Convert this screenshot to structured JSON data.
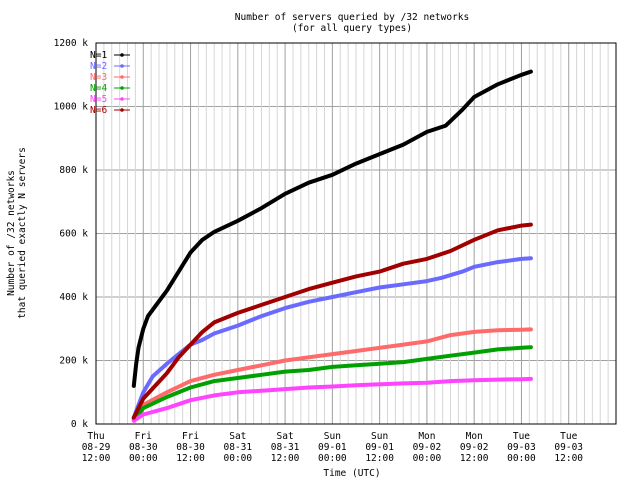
{
  "chart_data": {
    "type": "line",
    "title": "Number of servers queried by /32 networks",
    "subtitle": "(for all query types)",
    "xlabel": "Time (UTC)",
    "ylabel_line1": "Number of /32 networks",
    "ylabel_line2": "that queried exactly N servers",
    "ylim": [
      0,
      1200000
    ],
    "xlim": [
      0,
      11
    ],
    "x_unit": "half-days since Thu 08-29 12:00",
    "grid": true,
    "legend_position": "top-left",
    "x_ticks": [
      {
        "day": "Thu",
        "date": "08-29",
        "time": "12:00"
      },
      {
        "day": "Fri",
        "date": "08-30",
        "time": "00:00"
      },
      {
        "day": "Fri",
        "date": "08-30",
        "time": "12:00"
      },
      {
        "day": "Sat",
        "date": "08-31",
        "time": "00:00"
      },
      {
        "day": "Sat",
        "date": "08-31",
        "time": "12:00"
      },
      {
        "day": "Sun",
        "date": "09-01",
        "time": "00:00"
      },
      {
        "day": "Sun",
        "date": "09-01",
        "time": "12:00"
      },
      {
        "day": "Mon",
        "date": "09-02",
        "time": "00:00"
      },
      {
        "day": "Mon",
        "date": "09-02",
        "time": "12:00"
      },
      {
        "day": "Tue",
        "date": "09-03",
        "time": "00:00"
      },
      {
        "day": "Tue",
        "date": "09-03",
        "time": "12:00"
      }
    ],
    "y_ticks": [
      {
        "value": 0,
        "label": "0 k"
      },
      {
        "value": 200000,
        "label": "200 k"
      },
      {
        "value": 400000,
        "label": "400 k"
      },
      {
        "value": 600000,
        "label": "600 k"
      },
      {
        "value": 800000,
        "label": "800 k"
      },
      {
        "value": 1000000,
        "label": "1000 k"
      },
      {
        "value": 1200000,
        "label": "1200 k"
      }
    ],
    "series": [
      {
        "name": "N=1",
        "color": "#000000",
        "points": [
          [
            0.8,
            120000
          ],
          [
            0.85,
            190000
          ],
          [
            0.9,
            240000
          ],
          [
            1.0,
            300000
          ],
          [
            1.1,
            340000
          ],
          [
            1.25,
            370000
          ],
          [
            1.5,
            420000
          ],
          [
            1.75,
            480000
          ],
          [
            2.0,
            540000
          ],
          [
            2.25,
            580000
          ],
          [
            2.5,
            605000
          ],
          [
            3.0,
            640000
          ],
          [
            3.5,
            680000
          ],
          [
            4.0,
            725000
          ],
          [
            4.5,
            760000
          ],
          [
            5.0,
            785000
          ],
          [
            5.5,
            820000
          ],
          [
            6.0,
            850000
          ],
          [
            6.5,
            880000
          ],
          [
            7.0,
            920000
          ],
          [
            7.4,
            940000
          ],
          [
            7.75,
            990000
          ],
          [
            8.0,
            1030000
          ],
          [
            8.5,
            1070000
          ],
          [
            9.0,
            1100000
          ],
          [
            9.2,
            1110000
          ]
        ]
      },
      {
        "name": "N=2",
        "color": "#6a6aff",
        "points": [
          [
            0.8,
            20000
          ],
          [
            0.9,
            60000
          ],
          [
            1.0,
            100000
          ],
          [
            1.2,
            150000
          ],
          [
            1.5,
            190000
          ],
          [
            1.75,
            220000
          ],
          [
            2.0,
            250000
          ],
          [
            2.25,
            265000
          ],
          [
            2.5,
            285000
          ],
          [
            3.0,
            310000
          ],
          [
            3.5,
            340000
          ],
          [
            4.0,
            365000
          ],
          [
            4.5,
            385000
          ],
          [
            5.0,
            400000
          ],
          [
            5.5,
            415000
          ],
          [
            6.0,
            430000
          ],
          [
            6.5,
            440000
          ],
          [
            7.0,
            450000
          ],
          [
            7.3,
            460000
          ],
          [
            7.75,
            480000
          ],
          [
            8.0,
            495000
          ],
          [
            8.5,
            510000
          ],
          [
            9.0,
            520000
          ],
          [
            9.2,
            522000
          ]
        ]
      },
      {
        "name": "N=3",
        "color": "#ff6a6a",
        "points": [
          [
            0.8,
            20000
          ],
          [
            0.9,
            40000
          ],
          [
            1.0,
            60000
          ],
          [
            1.5,
            100000
          ],
          [
            2.0,
            135000
          ],
          [
            2.5,
            155000
          ],
          [
            3.0,
            170000
          ],
          [
            3.5,
            185000
          ],
          [
            4.0,
            200000
          ],
          [
            4.5,
            210000
          ],
          [
            5.0,
            220000
          ],
          [
            5.5,
            230000
          ],
          [
            6.0,
            240000
          ],
          [
            6.5,
            250000
          ],
          [
            7.0,
            260000
          ],
          [
            7.5,
            280000
          ],
          [
            8.0,
            290000
          ],
          [
            8.5,
            295000
          ],
          [
            9.0,
            297000
          ],
          [
            9.2,
            298000
          ]
        ]
      },
      {
        "name": "N=4",
        "color": "#00a000",
        "points": [
          [
            0.8,
            15000
          ],
          [
            0.9,
            30000
          ],
          [
            1.0,
            50000
          ],
          [
            1.5,
            85000
          ],
          [
            2.0,
            115000
          ],
          [
            2.5,
            135000
          ],
          [
            3.0,
            145000
          ],
          [
            3.5,
            155000
          ],
          [
            4.0,
            165000
          ],
          [
            4.5,
            170000
          ],
          [
            5.0,
            180000
          ],
          [
            5.5,
            185000
          ],
          [
            6.0,
            190000
          ],
          [
            6.5,
            195000
          ],
          [
            7.0,
            205000
          ],
          [
            7.5,
            215000
          ],
          [
            8.0,
            225000
          ],
          [
            8.5,
            235000
          ],
          [
            9.0,
            240000
          ],
          [
            9.2,
            242000
          ]
        ]
      },
      {
        "name": "N=5",
        "color": "#ff44ff",
        "points": [
          [
            0.8,
            10000
          ],
          [
            0.9,
            20000
          ],
          [
            1.0,
            30000
          ],
          [
            1.5,
            50000
          ],
          [
            2.0,
            75000
          ],
          [
            2.5,
            90000
          ],
          [
            3.0,
            100000
          ],
          [
            3.5,
            105000
          ],
          [
            4.0,
            110000
          ],
          [
            4.5,
            115000
          ],
          [
            5.0,
            118000
          ],
          [
            5.5,
            122000
          ],
          [
            6.0,
            125000
          ],
          [
            6.5,
            128000
          ],
          [
            7.0,
            130000
          ],
          [
            7.5,
            135000
          ],
          [
            8.0,
            138000
          ],
          [
            8.5,
            140000
          ],
          [
            9.0,
            141000
          ],
          [
            9.2,
            142000
          ]
        ]
      },
      {
        "name": "N=6",
        "color": "#a00000",
        "points": [
          [
            0.8,
            20000
          ],
          [
            0.9,
            50000
          ],
          [
            1.0,
            80000
          ],
          [
            1.25,
            120000
          ],
          [
            1.5,
            160000
          ],
          [
            1.75,
            210000
          ],
          [
            2.0,
            250000
          ],
          [
            2.25,
            290000
          ],
          [
            2.5,
            320000
          ],
          [
            3.0,
            350000
          ],
          [
            3.5,
            375000
          ],
          [
            4.0,
            400000
          ],
          [
            4.5,
            425000
          ],
          [
            5.0,
            445000
          ],
          [
            5.5,
            465000
          ],
          [
            6.0,
            480000
          ],
          [
            6.5,
            505000
          ],
          [
            7.0,
            520000
          ],
          [
            7.5,
            545000
          ],
          [
            8.0,
            580000
          ],
          [
            8.5,
            610000
          ],
          [
            9.0,
            625000
          ],
          [
            9.2,
            628000
          ]
        ]
      }
    ]
  }
}
